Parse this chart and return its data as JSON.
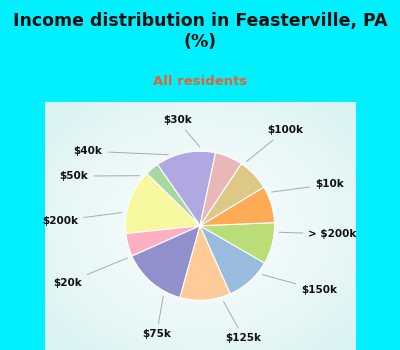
{
  "title": "Income distribution in Feasterville, PA\n(%)",
  "subtitle": "All residents",
  "labels": [
    "$100k",
    "$10k",
    "> $200k",
    "$150k",
    "$125k",
    "$75k",
    "$20k",
    "$200k",
    "$50k",
    "$40k",
    "$30k"
  ],
  "values": [
    13,
    3,
    14,
    5,
    14,
    11,
    10,
    9,
    8,
    7,
    6
  ],
  "colors": [
    "#b0a8e0",
    "#a8d8a0",
    "#f8f8a0",
    "#ffb0c0",
    "#9090cc",
    "#ffcc99",
    "#99bbdd",
    "#bbdd77",
    "#ffaa55",
    "#ddc888",
    "#e8b8b8"
  ],
  "bg_cyan": "#00f0ff",
  "bg_chart_color": "#d0eed8",
  "title_color": "#111111",
  "subtitle_color": "#dd6633",
  "startangle": 78,
  "label_fontsize": 7.5,
  "title_fontsize": 12.5
}
